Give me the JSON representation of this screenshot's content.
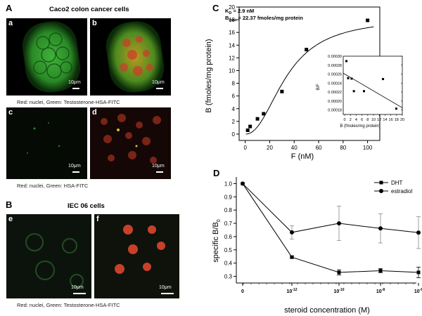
{
  "panels": {
    "A": {
      "letter": "A",
      "title": "Caco2 colon cancer cells",
      "caption_top": "Red: nuclei, Green: Testosterone-HSA-FITC",
      "caption_bottom": "Red: nuclei, Green: HSA-FITC",
      "images": [
        {
          "tag": "a",
          "scale": "10μm"
        },
        {
          "tag": "b",
          "scale": "10μm"
        },
        {
          "tag": "c",
          "scale": "10μm"
        },
        {
          "tag": "d",
          "scale": "10μm"
        }
      ]
    },
    "B": {
      "letter": "B",
      "title": "IEC 06 cells",
      "caption": "Red: nuclei, Green: Testosterone-HSA-FITC",
      "images": [
        {
          "tag": "e",
          "scale": "10μm"
        },
        {
          "tag": "f",
          "scale": "10μm"
        }
      ]
    },
    "C": {
      "letter": "C"
    },
    "D": {
      "letter": "D"
    }
  },
  "chart_data": [
    {
      "id": "C-main",
      "type": "scatter",
      "annotations": [
        "Kₑ = 2.9 nM",
        "Bₘₐₓ = 22.37 fmoles/mg protein"
      ],
      "annotation_text": {
        "kd": "K",
        "kd_sub": "D",
        "kd_val": " = 2.9 nM",
        "bmax": "B",
        "bmax_sub": "max",
        "bmax_val": " = 22.37 fmoles/mg protein"
      },
      "xlabel": "F (nM)",
      "ylabel": "B (fmoles/mg protein)",
      "xlim": [
        -5,
        110
      ],
      "ylim": [
        -1,
        20
      ],
      "xticks": [
        0,
        20,
        40,
        60,
        80,
        100
      ],
      "yticks": [
        0,
        2,
        4,
        6,
        8,
        10,
        12,
        14,
        16,
        18,
        20
      ],
      "points": [
        {
          "x": 2,
          "y": 0.6
        },
        {
          "x": 4,
          "y": 1.2
        },
        {
          "x": 10,
          "y": 2.4
        },
        {
          "x": 15,
          "y": 3.2
        },
        {
          "x": 30,
          "y": 6.7
        },
        {
          "x": 50,
          "y": 13.3
        },
        {
          "x": 100,
          "y": 17.9
        }
      ]
    },
    {
      "id": "C-inset",
      "type": "scatter",
      "xlabel": "B (fmoles/mg protein)",
      "ylabel": "B/F",
      "xlim": [
        -0.5,
        20
      ],
      "ylim": [
        0.00017,
        0.0003
      ],
      "xticks": [
        0,
        2,
        4,
        6,
        8,
        10,
        12,
        14,
        16,
        18,
        20
      ],
      "yticks": [
        "0.00018",
        "0.00020",
        "0.00022",
        "0.00024",
        "0.00026",
        "0.00028",
        "0.00030"
      ],
      "yticks_values": [
        0.00018,
        0.0002,
        0.00022,
        0.00024,
        0.00026,
        0.00028,
        0.0003
      ],
      "points": [
        {
          "x": 0.6,
          "y": 0.000289
        },
        {
          "x": 1.2,
          "y": 0.000251
        },
        {
          "x": 2.4,
          "y": 0.00025
        },
        {
          "x": 3.2,
          "y": 0.000222
        },
        {
          "x": 6.7,
          "y": 0.000222
        },
        {
          "x": 13.3,
          "y": 0.000249
        },
        {
          "x": 17.9,
          "y": 0.000183
        }
      ],
      "fit_line": [
        {
          "x": -0.5,
          "y": 0.000262
        },
        {
          "x": 20,
          "y": 0.000185
        }
      ]
    },
    {
      "id": "D",
      "type": "line",
      "xlabel": "steroid concentration (M)",
      "ylabel": "specific B/B",
      "ylabel_sub": "0",
      "categories": [
        "0",
        "10",
        "10",
        "10",
        "10"
      ],
      "category_exponents": [
        "",
        "-12",
        "-10",
        "-8",
        "-6"
      ],
      "ylim": [
        0.25,
        1.05
      ],
      "yticks": [
        "0.3",
        "0.4",
        "0.5",
        "0.6",
        "0.7",
        "0.8",
        "0.9",
        "1.0"
      ],
      "yticks_values": [
        0.3,
        0.4,
        0.5,
        0.6,
        0.7,
        0.8,
        0.9,
        1.0
      ],
      "legend_position": "top-right",
      "series": [
        {
          "name": "DHT",
          "marker": "square",
          "values": [
            1.0,
            0.445,
            0.33,
            0.343,
            0.33
          ],
          "errors": [
            0,
            0.008,
            0.02,
            0.015,
            0.04
          ]
        },
        {
          "name": "estradiol",
          "marker": "circle",
          "values": [
            1.0,
            0.632,
            0.7,
            0.662,
            0.63
          ],
          "errors": [
            0,
            0.05,
            0.13,
            0.11,
            0.12
          ]
        }
      ]
    }
  ]
}
